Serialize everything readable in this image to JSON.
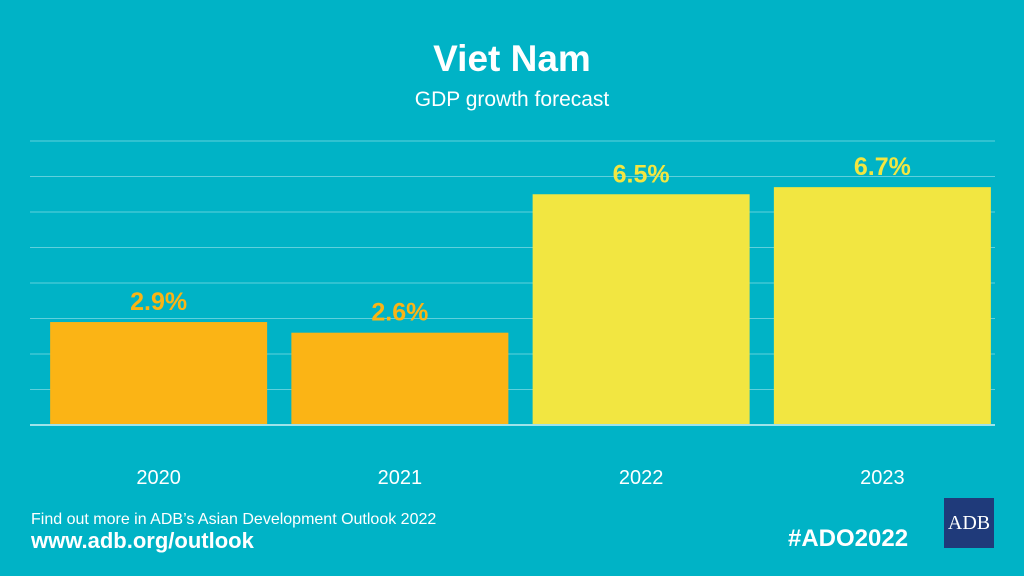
{
  "header": {
    "title": "Viet Nam",
    "subtitle": "GDP growth forecast"
  },
  "chart_data": {
    "type": "bar",
    "title": "Viet Nam",
    "subtitle": "GDP growth forecast",
    "categories": [
      "2020",
      "2021",
      "2022",
      "2023"
    ],
    "values": [
      2.9,
      2.6,
      6.5,
      6.7
    ],
    "labels": [
      "2.9%",
      "2.6%",
      "6.5%",
      "6.7%"
    ],
    "colors": [
      "#fbb415",
      "#fbb415",
      "#f2e641",
      "#f2e641"
    ],
    "ylim": [
      0,
      8
    ],
    "grid": true,
    "xlabel": "",
    "ylabel": ""
  },
  "footer": {
    "text": "Find out more in ADB’s Asian Development Outlook 2022",
    "url": "www.adb.org/outlook",
    "hashtag": "#ADO2022",
    "logo": "ADB"
  }
}
